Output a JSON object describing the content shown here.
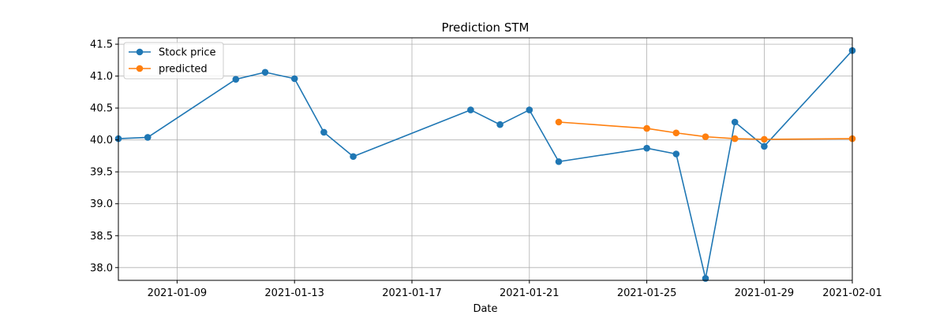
{
  "chart_data": {
    "type": "line",
    "title": "Prediction STM",
    "xlabel": "Date",
    "ylabel": "",
    "grid": true,
    "legend_position": "top-left",
    "xlim": [
      "2021-01-07",
      "2021-02-01"
    ],
    "ylim": [
      37.8,
      41.6
    ],
    "x_ticks": [
      "2021-01-09",
      "2021-01-13",
      "2021-01-17",
      "2021-01-21",
      "2021-01-25",
      "2021-01-29",
      "2021-02-01"
    ],
    "y_ticks": [
      38.0,
      38.5,
      39.0,
      39.5,
      40.0,
      40.5,
      41.0,
      41.5
    ],
    "series": [
      {
        "name": "Stock price",
        "color": "#1f77b4",
        "marker": "circle",
        "points": [
          {
            "x": "2021-01-07",
            "y": 40.02
          },
          {
            "x": "2021-01-08",
            "y": 40.04
          },
          {
            "x": "2021-01-11",
            "y": 40.95
          },
          {
            "x": "2021-01-12",
            "y": 41.06
          },
          {
            "x": "2021-01-13",
            "y": 40.96
          },
          {
            "x": "2021-01-14",
            "y": 40.12
          },
          {
            "x": "2021-01-15",
            "y": 39.74
          },
          {
            "x": "2021-01-19",
            "y": 40.47
          },
          {
            "x": "2021-01-20",
            "y": 40.24
          },
          {
            "x": "2021-01-21",
            "y": 40.47
          },
          {
            "x": "2021-01-22",
            "y": 39.66
          },
          {
            "x": "2021-01-25",
            "y": 39.87
          },
          {
            "x": "2021-01-26",
            "y": 39.78
          },
          {
            "x": "2021-01-27",
            "y": 37.83
          },
          {
            "x": "2021-01-28",
            "y": 40.28
          },
          {
            "x": "2021-01-29",
            "y": 39.9
          },
          {
            "x": "2021-02-01",
            "y": 41.4
          }
        ]
      },
      {
        "name": "predicted",
        "color": "#ff7f0e",
        "marker": "circle",
        "points": [
          {
            "x": "2021-01-22",
            "y": 40.28
          },
          {
            "x": "2021-01-25",
            "y": 40.18
          },
          {
            "x": "2021-01-26",
            "y": 40.11
          },
          {
            "x": "2021-01-27",
            "y": 40.05
          },
          {
            "x": "2021-01-28",
            "y": 40.02
          },
          {
            "x": "2021-01-29",
            "y": 40.01
          },
          {
            "x": "2021-02-01",
            "y": 40.02
          }
        ]
      }
    ]
  }
}
